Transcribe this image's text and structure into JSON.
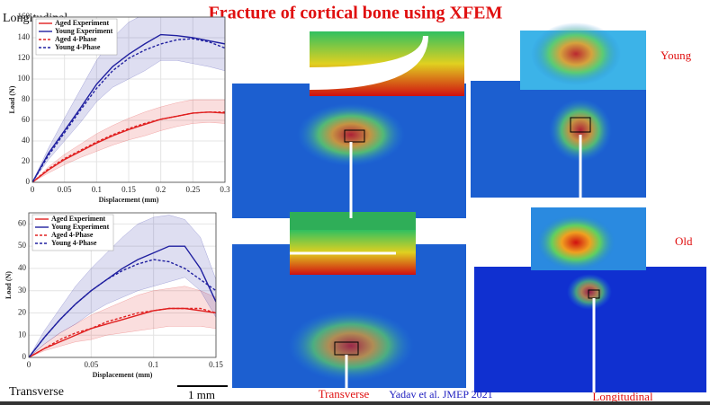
{
  "slide": {
    "title": "Fracture of cortical bone using XFEM",
    "label_top_left": "Longitudinal",
    "label_bottom_left": "Transverse",
    "label_young": "Young",
    "label_old": "Old",
    "scale_bar": "1 mm",
    "caption_left": "Transverse",
    "citation": "Yadav  et al. JMEP 2021",
    "caption_right": "Longitudinal"
  },
  "chart_data": [
    {
      "type": "line",
      "xlabel": "Displacement (mm)",
      "ylabel": "Load (N)",
      "x": [
        0,
        0.025,
        0.05,
        0.075,
        0.1,
        0.125,
        0.15,
        0.175,
        0.2,
        0.225,
        0.25,
        0.275,
        0.3
      ],
      "xlim": [
        0,
        0.3
      ],
      "xticks": [
        0,
        0.05,
        0.1,
        0.15,
        0.2,
        0.25,
        0.3
      ],
      "ylim": [
        0,
        160
      ],
      "yticks": [
        0,
        20,
        40,
        60,
        80,
        100,
        120,
        140,
        160
      ],
      "grid": true,
      "series": [
        {
          "name": "Aged Experiment",
          "color": "#e02020",
          "style": "solid",
          "values": [
            0,
            12,
            22,
            30,
            38,
            45,
            51,
            56,
            61,
            64,
            67,
            68,
            67
          ],
          "band": {
            "upper": [
              0,
              15,
              27,
              37,
              47,
              55,
              62,
              68,
              73,
              77,
              80,
              80,
              80
            ],
            "lower": [
              0,
              9,
              17,
              24,
              30,
              36,
              41,
              45,
              50,
              54,
              57,
              58,
              57
            ]
          }
        },
        {
          "name": "Young Experiment",
          "color": "#2020a0",
          "style": "solid",
          "values": [
            0,
            28,
            50,
            72,
            95,
            112,
            124,
            134,
            143,
            142,
            140,
            137,
            134
          ],
          "band": {
            "upper": [
              0,
              33,
              62,
              90,
              118,
              140,
              155,
              163,
              165,
              162,
              160,
              165,
              168
            ],
            "lower": [
              0,
              22,
              40,
              58,
              78,
              92,
              100,
              108,
              118,
              118,
              115,
              112,
              108
            ]
          }
        },
        {
          "name": "Aged 4-Phase",
          "color": "#e02020",
          "style": "dashed",
          "values": [
            0,
            13,
            23,
            31,
            39,
            46,
            52,
            57,
            61,
            64,
            67,
            68,
            68
          ]
        },
        {
          "name": "Young 4-Phase",
          "color": "#2020a0",
          "style": "dashed",
          "values": [
            0,
            26,
            48,
            70,
            91,
            108,
            120,
            128,
            134,
            138,
            139,
            136,
            130
          ]
        }
      ]
    },
    {
      "type": "line",
      "xlabel": "Displacement (mm)",
      "ylabel": "Load (N)",
      "x": [
        0,
        0.0125,
        0.025,
        0.0375,
        0.05,
        0.0625,
        0.075,
        0.0875,
        0.1,
        0.1125,
        0.125,
        0.1375,
        0.15
      ],
      "xlim": [
        0,
        0.15
      ],
      "xticks": [
        0,
        0.05,
        0.1,
        0.15
      ],
      "ylim": [
        0,
        65
      ],
      "yticks": [
        0,
        10,
        20,
        30,
        40,
        50,
        60
      ],
      "grid": true,
      "series": [
        {
          "name": "Aged Experiment",
          "color": "#e02020",
          "style": "solid",
          "values": [
            0,
            4,
            7,
            10,
            13,
            15,
            17,
            19,
            21,
            22,
            22,
            21,
            20
          ],
          "band": {
            "upper": [
              0,
              6,
              11,
              15,
              19,
              22,
              25,
              28,
              30,
              31,
              32,
              30,
              27
            ],
            "lower": [
              0,
              3,
              5,
              7,
              8,
              10,
              11,
              12,
              13,
              14,
              14,
              14,
              13
            ]
          }
        },
        {
          "name": "Young Experiment",
          "color": "#2020a0",
          "style": "solid",
          "values": [
            0,
            9,
            17,
            24,
            30,
            35,
            40,
            44,
            47,
            50,
            50,
            40,
            25
          ],
          "band": {
            "upper": [
              0,
              12,
              22,
              32,
              40,
              47,
              54,
              60,
              63,
              64,
              62,
              54,
              35
            ],
            "lower": [
              0,
              6,
              11,
              15,
              20,
              24,
              27,
              30,
              32,
              34,
              36,
              30,
              18
            ]
          }
        },
        {
          "name": "Aged 4-Phase",
          "color": "#e02020",
          "style": "dashed",
          "values": [
            0,
            4,
            8,
            11,
            13,
            16,
            18,
            20,
            21,
            22,
            22,
            22,
            20
          ]
        },
        {
          "name": "Young 4-Phase",
          "color": "#2020a0",
          "style": "dashed",
          "values": [
            0,
            9,
            17,
            24,
            30,
            35,
            39,
            42,
            44,
            43,
            40,
            35,
            30
          ]
        }
      ]
    }
  ]
}
